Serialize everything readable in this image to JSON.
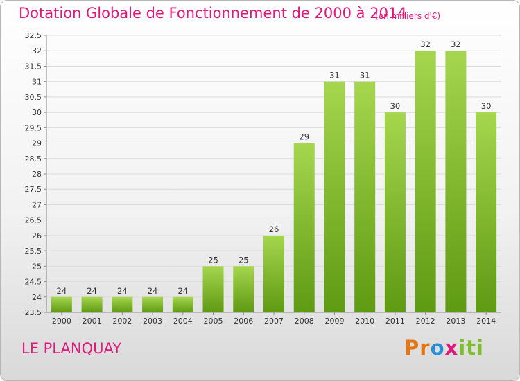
{
  "header": {
    "title": "Dotation Globale de Fonctionnement de 2000 à 2014",
    "subtitle": "(en milliers d'€)"
  },
  "footer": {
    "commune": "LE PLANQUAY",
    "brand": [
      "Pr",
      "o",
      "x",
      "iti"
    ]
  },
  "colors": {
    "accent": "#e0187a",
    "bar_top": "#a5d64e",
    "bar_bottom": "#5e9a12"
  },
  "chart_data": {
    "type": "bar",
    "title": "Dotation Globale de Fonctionnement de 2000 à 2014",
    "subtitle": "(en milliers d'€)",
    "categories": [
      "2000",
      "2001",
      "2002",
      "2003",
      "2004",
      "2005",
      "2006",
      "2007",
      "2008",
      "2009",
      "2010",
      "2011",
      "2012",
      "2013",
      "2014"
    ],
    "values": [
      24,
      24,
      24,
      24,
      24,
      25,
      25,
      26,
      29,
      31,
      31,
      30,
      32,
      32,
      30
    ],
    "ylim": [
      23.5,
      32.5
    ],
    "yticks": [
      "23.5",
      "24",
      "24.5",
      "25",
      "25.5",
      "26",
      "26.5",
      "27",
      "27.5",
      "28",
      "28.5",
      "29",
      "29.5",
      "30",
      "30.5",
      "31",
      "31.5",
      "32",
      "32.5"
    ],
    "grid": true,
    "legend": "none"
  }
}
